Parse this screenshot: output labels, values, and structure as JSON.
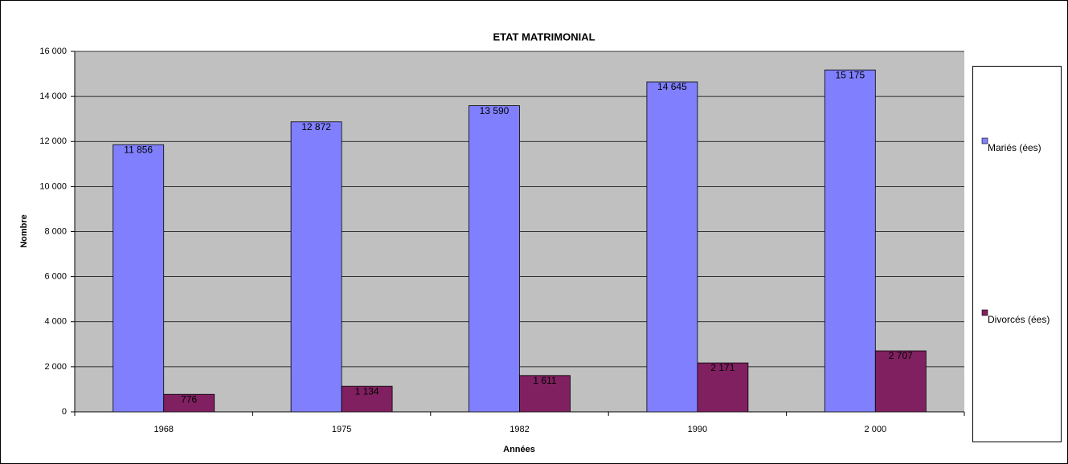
{
  "chart_data": {
    "type": "bar",
    "title": "ETAT MATRIMONIAL",
    "x_label": "Années",
    "y_label": "Nombre",
    "categories": [
      "1968",
      "1975",
      "1982",
      "1990",
      "2 000"
    ],
    "series": [
      {
        "name": "Mariés (ées)",
        "color": "#8080ff",
        "values": [
          11856,
          12872,
          13590,
          14645,
          15175
        ],
        "value_labels": [
          "11 856",
          "12 872",
          "13 590",
          "14 645",
          "15 175"
        ]
      },
      {
        "name": "Divorcés (ées)",
        "color": "#802060",
        "values": [
          776,
          1134,
          1611,
          2171,
          2707
        ],
        "value_labels": [
          "776",
          "1 134",
          "1 611",
          "2 171",
          "2 707"
        ]
      }
    ],
    "ylim": [
      0,
      16000
    ],
    "yticks": [
      0,
      {
        "value": 2000,
        "label": "2 000"
      },
      {
        "value": 4000,
        "label": "4 000"
      },
      {
        "value": 6000,
        "label": "6 000"
      },
      {
        "value": 8000,
        "label": "8 000"
      },
      {
        "value": 10000,
        "label": "10 000"
      },
      {
        "value": 12000,
        "label": "12 000"
      },
      {
        "value": 14000,
        "label": "14 000"
      },
      {
        "value": 16000,
        "label": "16 000"
      }
    ],
    "grid": true,
    "legend": "right"
  }
}
